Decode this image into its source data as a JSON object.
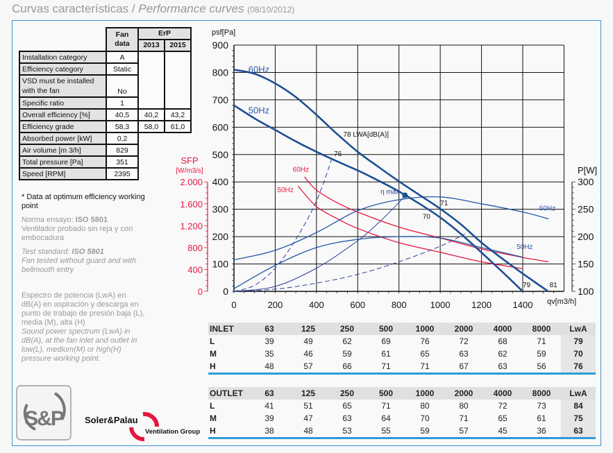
{
  "header": {
    "title_es": "Curvas características",
    "separator": "/",
    "title_en": "Performance curves",
    "date": "(08/10/2012)"
  },
  "fan_table": {
    "head_fan": [
      "Fan",
      "data"
    ],
    "head_erp": "ErP",
    "head_years": [
      "2013",
      "2015"
    ],
    "rows": [
      {
        "label": "Installation category",
        "fan": "A"
      },
      {
        "label": "Efficiency category",
        "fan": "Static"
      },
      {
        "label": "VSD must be installed with the fan",
        "fan": "No"
      },
      {
        "label": "Specific ratio",
        "fan": "1"
      },
      {
        "label": "Overall efficiency [%]",
        "fan": "40,5",
        "y2013": "40,2",
        "y2015": "43,2"
      },
      {
        "label": "Efficiency grade",
        "fan": "58,3",
        "y2013": "58,0",
        "y2015": "61,0"
      },
      {
        "label": "Absorbed power [kW]",
        "fan": "0,2"
      },
      {
        "label": "Air volume [m 3/h]",
        "fan": "829"
      },
      {
        "label": "Total pressure [Pa]",
        "fan": "351"
      },
      {
        "label": "Speed [RPM]",
        "fan": "2395"
      }
    ]
  },
  "notes": {
    "optimum": "* Data at optimum efficiency working point",
    "norma_prefix": "Norma ensayo: ",
    "norma_std": "ISO 5801",
    "norma_text": "Ventilador probado sin reja y con embocadura",
    "test_prefix": "Test standard: ",
    "test_std": "ISO 5801",
    "test_text": "Fan tested without guard and with bellmouth entry",
    "spectrum_es": "Espectro de potencia (LwA) en dB(A) en aspiración y descarga en punto de trabajo de presión baja (L), media (M), alta (H)",
    "spectrum_en": "Sound power spectrum (LwA) in dB(A), at the fan inlet and outlet in low(L), medium(M) or high(H) pressure working point."
  },
  "chart_data": {
    "type": "line",
    "xlabel": "qv[m3/h]",
    "ylabel": "psf[Pa]",
    "y2label": "P[W]",
    "y3label_top": "SFP",
    "y3label_unit": "[W/m3/s]",
    "xlim": [
      0,
      1600
    ],
    "ylim": [
      0,
      900
    ],
    "y2lim": [
      100,
      300
    ],
    "y3lim": [
      0,
      2000
    ],
    "grid": true,
    "x_ticks": [
      "0",
      "200",
      "400",
      "600",
      "800",
      "1000",
      "1200",
      "1400"
    ],
    "y_ticks": [
      "0",
      "100",
      "200",
      "300",
      "400",
      "500",
      "600",
      "700",
      "800",
      "900"
    ],
    "y2_ticks": [
      "100",
      "150",
      "200",
      "250",
      "300"
    ],
    "y3_ticks": [
      "0",
      "400",
      "800",
      "1.200",
      "1.600",
      "2.000"
    ],
    "colors": {
      "pressure": "#1c4f94",
      "power": "#2556a8",
      "sfp": "#e5173f",
      "system": "#2b3f9a",
      "grid": "#111111"
    },
    "pressure_series": [
      {
        "name": "60Hz",
        "x": [
          0,
          100,
          200,
          300,
          400,
          500,
          600,
          700,
          800,
          900,
          1000,
          1100,
          1200,
          1300,
          1400,
          1523
        ],
        "y": [
          810,
          795,
          760,
          710,
          645,
          575,
          510,
          455,
          402,
          352,
          302,
          245,
          178,
          120,
          65,
          0
        ]
      },
      {
        "name": "50Hz",
        "x": [
          0,
          100,
          200,
          300,
          400,
          500,
          600,
          700,
          800,
          900,
          1000,
          1100,
          1200,
          1300,
          1400
        ],
        "y": [
          680,
          632,
          590,
          548,
          510,
          475,
          442,
          405,
          365,
          320,
          270,
          210,
          142,
          72,
          0
        ]
      }
    ],
    "power_series": [
      {
        "name": "60Hz",
        "x": [
          0,
          200,
          400,
          600,
          800,
          1000,
          1200,
          1400,
          1525
        ],
        "y": [
          157.5,
          175,
          207.5,
          247.5,
          267.5,
          272.5,
          260,
          245,
          232.5
        ]
      },
      {
        "name": "50Hz",
        "x": [
          0,
          200,
          400,
          600,
          800,
          1000,
          1200,
          1400
        ],
        "y": [
          105,
          147.5,
          180,
          195,
          200,
          197.5,
          180,
          162.5
        ]
      }
    ],
    "sfp_series": [
      {
        "name": "60Hz",
        "x": [
          342,
          400,
          500,
          600,
          800,
          1000,
          1200,
          1400,
          1525
        ],
        "y": [
          2090,
          1850,
          1620,
          1450,
          1175,
          975,
          775,
          620,
          540
        ]
      },
      {
        "name": "50Hz",
        "x": [
          310,
          400,
          500,
          600,
          800,
          1000,
          1200,
          1400
        ],
        "y": [
          1925,
          1550,
          1330,
          1150,
          890,
          715,
          540,
          415
        ]
      }
    ],
    "system_curves": [
      {
        "style": "dashed",
        "x": [
          0,
          100,
          200,
          300,
          400,
          475
        ],
        "y": [
          0,
          22,
          85,
          190,
          330,
          485
        ]
      },
      {
        "style": "solid",
        "x": [
          0,
          200,
          400,
          600,
          700,
          800,
          822
        ],
        "y": [
          0,
          18,
          85,
          185,
          250,
          325,
          345
        ]
      },
      {
        "style": "dashed",
        "x": [
          0,
          200,
          400,
          600,
          800,
          1000,
          1120
        ],
        "y": [
          0,
          8,
          30,
          62,
          108,
          165,
          210
        ]
      }
    ],
    "optimum_point": {
      "x": 829,
      "y": 351,
      "label": "η max"
    },
    "annotations": [
      {
        "text": "60Hz",
        "q": 70,
        "p": 800,
        "cls": "big"
      },
      {
        "text": "50Hz",
        "q": 70,
        "p": 650,
        "cls": "big"
      },
      {
        "text": "78 LWA[dB(A)]",
        "q": 530,
        "p": 565,
        "cls": "num"
      },
      {
        "text": "76",
        "q": 485,
        "p": 495,
        "cls": "num"
      },
      {
        "text": "60Hz",
        "q": 285,
        "p": 437,
        "cls": "red"
      },
      {
        "text": "50Hz",
        "q": 210,
        "p": 362,
        "cls": "red"
      },
      {
        "text": "71",
        "q": 1000,
        "p": 315,
        "cls": "num"
      },
      {
        "text": "70",
        "q": 915,
        "p": 265,
        "cls": "num"
      },
      {
        "text": "60Hz",
        "q": 1480,
        "p": 295,
        "cls": "pw"
      },
      {
        "text": "50Hz",
        "q": 1370,
        "p": 155,
        "cls": "pw"
      },
      {
        "text": "79",
        "q": 1400,
        "p": 15,
        "cls": "num"
      },
      {
        "text": "81",
        "q": 1530,
        "p": 15,
        "cls": "num"
      }
    ]
  },
  "sound": {
    "bands": [
      "63",
      "125",
      "250",
      "500",
      "1000",
      "2000",
      "4000",
      "8000"
    ],
    "total_label": "LwA",
    "inlet": {
      "label": "INLET",
      "rows": [
        {
          "level": "L",
          "values": [
            "39",
            "49",
            "62",
            "69",
            "76",
            "72",
            "68",
            "71"
          ],
          "lwa": "79"
        },
        {
          "level": "M",
          "values": [
            "35",
            "46",
            "59",
            "61",
            "65",
            "63",
            "62",
            "59"
          ],
          "lwa": "70"
        },
        {
          "level": "H",
          "values": [
            "48",
            "57",
            "66",
            "71",
            "71",
            "67",
            "63",
            "56"
          ],
          "lwa": "76"
        }
      ]
    },
    "outlet": {
      "label": "OUTLET",
      "rows": [
        {
          "level": "L",
          "values": [
            "41",
            "51",
            "65",
            "71",
            "80",
            "80",
            "72",
            "73"
          ],
          "lwa": "84"
        },
        {
          "level": "M",
          "values": [
            "39",
            "47",
            "63",
            "64",
            "70",
            "71",
            "65",
            "61"
          ],
          "lwa": "75"
        },
        {
          "level": "H",
          "values": [
            "38",
            "48",
            "53",
            "55",
            "59",
            "57",
            "45",
            "36"
          ],
          "lwa": "63"
        }
      ]
    }
  },
  "branding": {
    "logo_mark": "S&P",
    "company": "Soler&Palau",
    "group": "Ventilation Group",
    "accent": "#e5173f"
  }
}
